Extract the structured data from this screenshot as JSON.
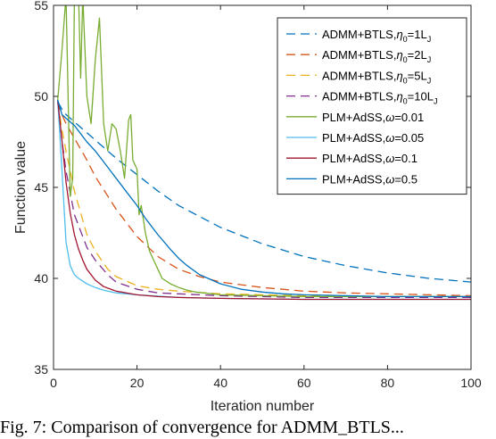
{
  "chart_data": {
    "type": "line",
    "xlabel": "Iteration number",
    "ylabel": "Function value",
    "xlim": [
      0,
      100
    ],
    "ylim": [
      35,
      55
    ],
    "xticks": [
      0,
      20,
      40,
      60,
      80,
      100
    ],
    "yticks": [
      35,
      40,
      45,
      50,
      55
    ],
    "legend_position": "top-right",
    "series": [
      {
        "name_main": "ADMM+BTLS,",
        "name_greek": "η",
        "name_sub": "0",
        "name_mid": "=1L",
        "name_sub2": "J",
        "color": "#0072BD",
        "dashed": true,
        "x": [
          1,
          2,
          3,
          5,
          8,
          10,
          15,
          20,
          25,
          30,
          40,
          50,
          60,
          70,
          80,
          90,
          100
        ],
        "y": [
          49.7,
          49.3,
          49.0,
          48.6,
          48.0,
          47.6,
          46.6,
          45.7,
          44.8,
          44.0,
          42.8,
          41.9,
          41.2,
          40.7,
          40.3,
          40.0,
          39.8
        ]
      },
      {
        "name_main": "ADMM+BTLS,",
        "name_greek": "η",
        "name_sub": "0",
        "name_mid": "=2L",
        "name_sub2": "J",
        "color": "#D95319",
        "dashed": true,
        "x": [
          1,
          2,
          3,
          5,
          8,
          10,
          15,
          20,
          25,
          30,
          35,
          40,
          50,
          60,
          70,
          80,
          90,
          100
        ],
        "y": [
          49.7,
          49.0,
          48.5,
          47.7,
          46.5,
          45.6,
          43.8,
          42.3,
          41.2,
          40.5,
          40.1,
          39.8,
          39.5,
          39.3,
          39.2,
          39.15,
          39.1,
          39.05
        ]
      },
      {
        "name_main": "ADMM+BTLS,",
        "name_greek": "η",
        "name_sub": "0",
        "name_mid": "=5L",
        "name_sub2": "J",
        "color": "#EDB120",
        "dashed": true,
        "x": [
          1,
          2,
          3,
          5,
          8,
          10,
          13,
          15,
          20,
          25,
          30,
          40,
          50,
          60,
          80,
          100
        ],
        "y": [
          49.7,
          48.2,
          47.0,
          44.8,
          42.4,
          41.5,
          40.5,
          40.1,
          39.6,
          39.4,
          39.3,
          39.15,
          39.1,
          39.05,
          39.0,
          39.0
        ]
      },
      {
        "name_main": "ADMM+BTLS,",
        "name_greek": "η",
        "name_sub": "0",
        "name_mid": "=10L",
        "name_sub2": "J",
        "color": "#7E2F8E",
        "dashed": true,
        "x": [
          1,
          2,
          3,
          5,
          8,
          10,
          13,
          15,
          20,
          25,
          30,
          40,
          50,
          60,
          80,
          100
        ],
        "y": [
          49.7,
          47.6,
          45.9,
          43.5,
          41.7,
          41.0,
          40.2,
          39.8,
          39.4,
          39.2,
          39.15,
          39.05,
          39.0,
          38.95,
          38.95,
          38.95
        ]
      },
      {
        "name_main": "PLM+AdSS,",
        "name_greek": "ω",
        "name_sub": "",
        "name_mid": "=0.01",
        "name_sub2": "",
        "color": "#77AC30",
        "dashed": false,
        "x": [
          1,
          2,
          3,
          4,
          4.6,
          5,
          6,
          6.5,
          7,
          8,
          9,
          10,
          11,
          12,
          13,
          14,
          15,
          16,
          17,
          18,
          18.5,
          19,
          20,
          20.5,
          21,
          22,
          23,
          24,
          25,
          26,
          28,
          30,
          32,
          34,
          36,
          40,
          50,
          60,
          80,
          100
        ],
        "y": [
          49.8,
          52.5,
          55.5,
          44.5,
          45.5,
          55.5,
          55.5,
          51.0,
          55.5,
          50.0,
          48.5,
          52.0,
          54.3,
          48.5,
          47.0,
          48.5,
          48.2,
          47.0,
          45.5,
          48.7,
          49.0,
          46.5,
          46.0,
          43.5,
          44.0,
          42.5,
          41.5,
          41.0,
          40.5,
          40.0,
          39.7,
          39.5,
          39.35,
          39.25,
          39.2,
          39.1,
          39.05,
          39.0,
          39.0,
          39.0
        ]
      },
      {
        "name_main": "PLM+AdSS,",
        "name_greek": "ω",
        "name_sub": "",
        "name_mid": "=0.05",
        "name_sub2": "",
        "color": "#4DBEEE",
        "dashed": false,
        "x": [
          1,
          2,
          3,
          4,
          5,
          6,
          7,
          8,
          10,
          12,
          15,
          20,
          30,
          40,
          60,
          80,
          100
        ],
        "y": [
          49.8,
          46.0,
          42.0,
          40.7,
          40.2,
          40.0,
          39.85,
          39.7,
          39.5,
          39.35,
          39.2,
          39.1,
          38.95,
          38.9,
          38.85,
          38.85,
          38.85
        ]
      },
      {
        "name_main": "PLM+AdSS,",
        "name_greek": "ω",
        "name_sub": "",
        "name_mid": "=0.1",
        "name_sub2": "",
        "color": "#A2142F",
        "dashed": false,
        "x": [
          1,
          2,
          3,
          4,
          5,
          6,
          7,
          8,
          10,
          12,
          15,
          20,
          25,
          30,
          40,
          60,
          80,
          100
        ],
        "y": [
          49.8,
          47.6,
          45.3,
          43.6,
          42.4,
          41.6,
          41.0,
          40.5,
          39.9,
          39.55,
          39.3,
          39.1,
          39.0,
          38.95,
          38.9,
          38.85,
          38.85,
          38.85
        ]
      },
      {
        "name_main": "PLM+AdSS,",
        "name_greek": "ω",
        "name_sub": "",
        "name_mid": "=0.5",
        "name_sub2": "",
        "color": "#0072BD",
        "dashed": false,
        "x": [
          1,
          2,
          3,
          4,
          5,
          6,
          8,
          10,
          12,
          15,
          18,
          20,
          22,
          25,
          28,
          30,
          32,
          35,
          40,
          45,
          50,
          55,
          60,
          70,
          80,
          90,
          100
        ],
        "y": [
          49.8,
          49.0,
          48.8,
          48.6,
          48.4,
          48.1,
          47.5,
          47.0,
          46.4,
          45.5,
          44.6,
          44.0,
          43.3,
          42.4,
          41.6,
          41.1,
          40.7,
          40.2,
          39.7,
          39.4,
          39.25,
          39.15,
          39.1,
          39.05,
          39.0,
          39.0,
          39.0
        ]
      }
    ]
  },
  "caption": "Fig. 7: Comparison of convergence for ADMM_BTLS..."
}
